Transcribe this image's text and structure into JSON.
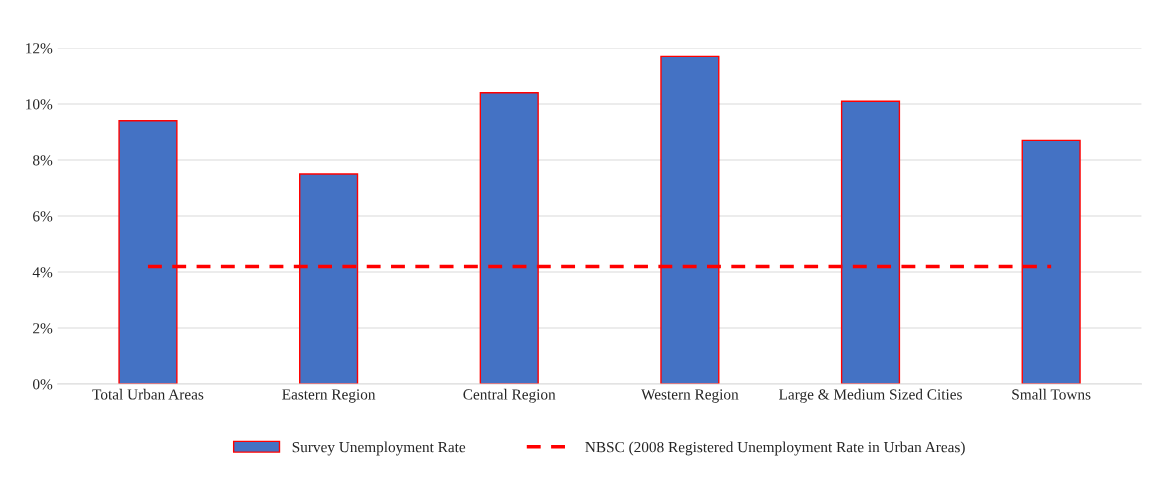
{
  "chart_data": {
    "type": "bar",
    "categories": [
      "Total Urban Areas",
      "Eastern Region",
      "Central Region",
      "Western Region",
      "Large & Medium Sized Cities",
      "Small Towns"
    ],
    "series": [
      {
        "name": "Survey Unemployment Rate",
        "color": "#4472c4",
        "values": [
          9.4,
          7.5,
          10.4,
          11.7,
          10.1,
          8.7
        ]
      },
      {
        "name": "NBSC (2008 Registered Unemployment Rate in Urban Areas)",
        "type": "line",
        "color": "#ff0000",
        "line_style": "dashed",
        "values": [
          4.2,
          4.2,
          4.2,
          4.2,
          4.2,
          4.2
        ]
      }
    ],
    "ylim": [
      0,
      12
    ],
    "yticks": [
      {
        "value": 0,
        "label": "0%"
      },
      {
        "value": 2,
        "label": "2%"
      },
      {
        "value": 4,
        "label": "4%"
      },
      {
        "value": 6,
        "label": "6%"
      },
      {
        "value": 8,
        "label": "8%"
      },
      {
        "value": 10,
        "label": "10%"
      },
      {
        "value": 12,
        "label": "12%"
      }
    ],
    "grid": "y",
    "legend": "bottom"
  }
}
